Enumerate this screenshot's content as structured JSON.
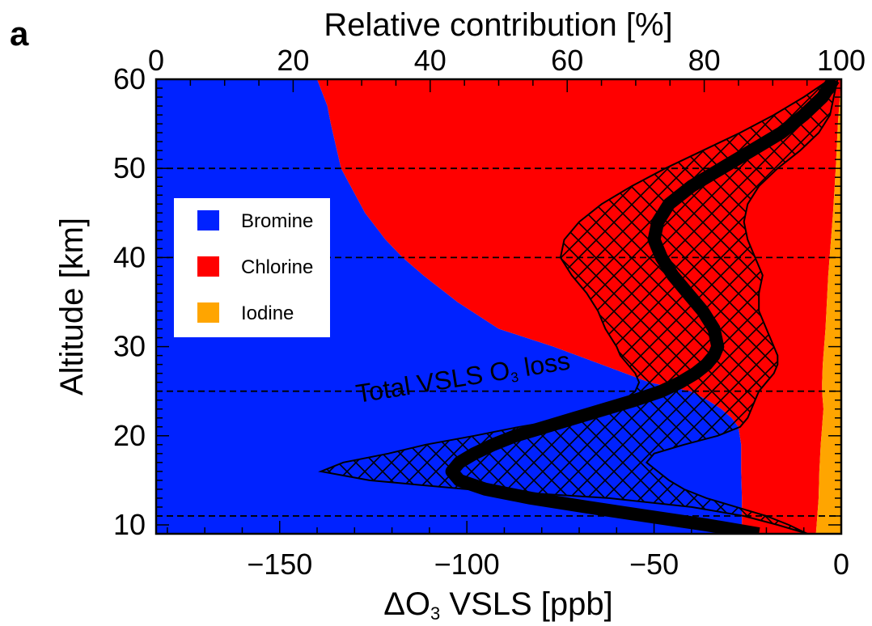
{
  "panel_label": "a",
  "chart_data": {
    "type": "area",
    "xlabel_top": "Relative contribution [%]",
    "xlabel_bottom_delta": "Δ",
    "xlabel_bottom_o": "O",
    "xlabel_bottom_sub": "3",
    "xlabel_bottom_rest": " VSLS [ppb]",
    "ylabel": "Altitude [km]",
    "xlim_top": [
      0,
      100
    ],
    "xticks_top": [
      0,
      20,
      40,
      60,
      80,
      100
    ],
    "xlim_bottom": [
      -183,
      0
    ],
    "xticks_bottom": [
      -150,
      -100,
      -50,
      0
    ],
    "xticklabels_bottom": [
      "−150",
      "−100",
      "−50",
      "0"
    ],
    "ylim": [
      9,
      60
    ],
    "yticks": [
      10,
      20,
      30,
      40,
      50,
      60
    ],
    "dashed_lines_km": [
      11,
      25,
      40,
      50
    ],
    "colors": {
      "Bromine": "#0022ff",
      "Chlorine": "#ff0000",
      "Iodine": "#ffa500"
    },
    "legend": {
      "placement": "upper-left",
      "entries": [
        "Bromine",
        "Chlorine",
        "Iodine"
      ]
    },
    "altitude_km": [
      9,
      11,
      13,
      16,
      19,
      21,
      22,
      23,
      24,
      25,
      26,
      28,
      30,
      32,
      35,
      38,
      40,
      42,
      45,
      50,
      55,
      57,
      60
    ],
    "series": [
      {
        "name": "Bromine",
        "cumulative_upper_pct": [
          85.5,
          85.5,
          85.5,
          85.4,
          85.4,
          85.0,
          84.0,
          82.5,
          80.5,
          78.0,
          72.0,
          65.0,
          58.0,
          50.0,
          44.0,
          39.0,
          36.0,
          33.5,
          30.5,
          27.0,
          25.5,
          25.0,
          23.5
        ]
      },
      {
        "name": "Chlorine",
        "cumulative_upper_pct": [
          96.3,
          96.5,
          96.7,
          96.8,
          97.0,
          97.2,
          97.3,
          97.4,
          97.3,
          97.2,
          97.2,
          97.3,
          97.5,
          97.7,
          97.9,
          98.1,
          98.3,
          98.5,
          98.8,
          99.2,
          99.5,
          99.7,
          100.0
        ]
      },
      {
        "name": "Iodine",
        "cumulative_upper_pct": [
          100,
          100,
          100,
          100,
          100,
          100,
          100,
          100,
          100,
          100,
          100,
          100,
          100,
          100,
          100,
          100,
          100,
          100,
          100,
          100,
          100,
          100,
          100
        ]
      }
    ],
    "loss_series": {
      "label_text": "Total VSLS O",
      "label_sub": "3",
      "label_rest": " loss",
      "units": "ppb",
      "altitude_km": [
        9,
        10,
        11,
        12,
        13,
        14,
        15,
        16,
        17,
        18,
        19,
        20,
        21,
        22,
        23,
        24,
        25,
        26,
        27,
        28,
        29,
        30,
        32,
        34,
        36,
        38,
        40,
        42,
        44,
        46,
        48,
        50,
        52,
        54,
        56,
        58,
        60
      ],
      "mean": [
        -22,
        -36,
        -52,
        -68,
        -83,
        -95,
        -102,
        -104,
        -102,
        -98,
        -93,
        -87,
        -79,
        -71,
        -63,
        -55,
        -48,
        -43,
        -39,
        -36,
        -34,
        -33,
        -34,
        -37,
        -41,
        -45,
        -48,
        -50,
        -49,
        -46,
        -40,
        -32,
        -24,
        -16,
        -10,
        -5,
        -2
      ],
      "min": [
        -9,
        -17,
        -26,
        -40,
        -62,
        -100,
        -126,
        -139,
        -133,
        -121,
        -111,
        -98,
        -86,
        -72,
        -64,
        -58,
        -55,
        -54,
        -55,
        -57,
        -59,
        -60,
        -63,
        -65,
        -68,
        -72,
        -75,
        -74,
        -70,
        -64,
        -56,
        -47,
        -37,
        -27,
        -18,
        -10,
        -3
      ],
      "max": [
        -9,
        -14,
        -20,
        -28,
        -36,
        -42,
        -46,
        -49,
        -52,
        -50,
        -42,
        -33,
        -27,
        -25,
        -24,
        -23,
        -22,
        -20,
        -18,
        -17,
        -17,
        -18,
        -20,
        -22,
        -22,
        -21,
        -23,
        -25,
        -26,
        -25,
        -22,
        -17,
        -11,
        -6,
        -3,
        -2,
        -1
      ]
    }
  }
}
